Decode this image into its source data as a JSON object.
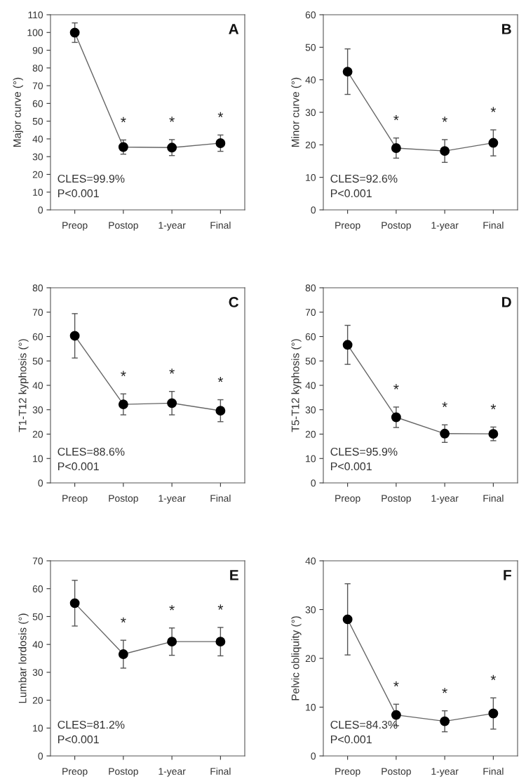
{
  "chart_data": [
    {
      "type": "line",
      "ylabel": "Major curve (°)",
      "categories": [
        "Preop",
        "Postop",
        "1-year",
        "Final"
      ],
      "ylim": [
        0,
        110
      ],
      "yticks": [
        0,
        10,
        20,
        30,
        40,
        50,
        60,
        70,
        80,
        90,
        100,
        110
      ],
      "marker": "circle",
      "grid": false,
      "series": [
        {
          "color": "#000000",
          "values": [
            99.9,
            35.4,
            35.1,
            37.6
          ],
          "errors": [
            5.5,
            4,
            4.5,
            4.6
          ]
        }
      ],
      "annotations": [
        "A",
        "CLES=99.9%",
        "P<0.001",
        "*",
        "*",
        "*"
      ]
    },
    {
      "type": "line",
      "ylabel": "Minor curve (°)",
      "categories": [
        "Preop",
        "Postop",
        "1-year",
        "Final"
      ],
      "ylim": [
        0,
        60
      ],
      "yticks": [
        0,
        10,
        20,
        30,
        40,
        50,
        60
      ],
      "marker": "circle",
      "grid": false,
      "series": [
        {
          "color": "#000000",
          "values": [
            42.5,
            19.0,
            18.1,
            20.6
          ],
          "errors": [
            7,
            3.1,
            3.5,
            4
          ]
        }
      ],
      "annotations": [
        "B",
        "CLES=92.6%",
        "P<0.001",
        "*",
        "*",
        "*"
      ]
    },
    {
      "type": "line",
      "ylabel": "T1-T12 kyphosis (°)",
      "categories": [
        "Preop",
        "Postop",
        "1-year",
        "Final"
      ],
      "ylim": [
        0,
        80
      ],
      "yticks": [
        0,
        10,
        20,
        30,
        40,
        50,
        60,
        70,
        80
      ],
      "marker": "circle",
      "grid": false,
      "series": [
        {
          "color": "#000000",
          "values": [
            60.3,
            32.2,
            32.7,
            29.6
          ],
          "errors": [
            9.1,
            4.3,
            4.8,
            4.5
          ]
        }
      ],
      "annotations": [
        "C",
        "CLES=88.6%",
        "P<0.001",
        "*",
        "*",
        "*"
      ]
    },
    {
      "type": "line",
      "ylabel": "T5-T12 kyphosis (°)",
      "categories": [
        "Preop",
        "Postop",
        "1-year",
        "Final"
      ],
      "ylim": [
        0,
        80
      ],
      "yticks": [
        0,
        10,
        20,
        30,
        40,
        50,
        60,
        70,
        80
      ],
      "marker": "circle",
      "grid": false,
      "series": [
        {
          "color": "#000000",
          "values": [
            56.6,
            26.9,
            20.2,
            20.1
          ],
          "errors": [
            8,
            4.2,
            3.6,
            2.8
          ]
        }
      ],
      "annotations": [
        "D",
        "CLES=95.9%",
        "P<0.001",
        "*",
        "*",
        "*"
      ]
    },
    {
      "type": "line",
      "ylabel": "Lumbar lordosis (°)",
      "categories": [
        "Preop",
        "Postop",
        "1-year",
        "Final"
      ],
      "ylim": [
        0,
        70
      ],
      "yticks": [
        0,
        10,
        20,
        30,
        40,
        50,
        60,
        70
      ],
      "marker": "circle",
      "grid": false,
      "series": [
        {
          "color": "#000000",
          "values": [
            54.8,
            36.5,
            41.0,
            41.0
          ],
          "errors": [
            8.2,
            5,
            4.9,
            5.1
          ]
        }
      ],
      "annotations": [
        "E",
        "CLES=81.2%",
        "P<0.001",
        "*",
        "*",
        "*"
      ]
    },
    {
      "type": "line",
      "ylabel": "Pelvic obliquity (°)",
      "categories": [
        "Preop",
        "Postop",
        "1-year",
        "Final"
      ],
      "ylim": [
        0,
        40
      ],
      "yticks": [
        0,
        10,
        20,
        30,
        40
      ],
      "marker": "circle",
      "grid": false,
      "series": [
        {
          "color": "#000000",
          "values": [
            28.0,
            8.4,
            7.1,
            8.7
          ],
          "errors": [
            7.3,
            2.2,
            2.15,
            3.2
          ]
        }
      ],
      "annotations": [
        "F",
        "CLES=84.3%",
        "P<0.001",
        "*",
        "*",
        "*"
      ]
    }
  ]
}
